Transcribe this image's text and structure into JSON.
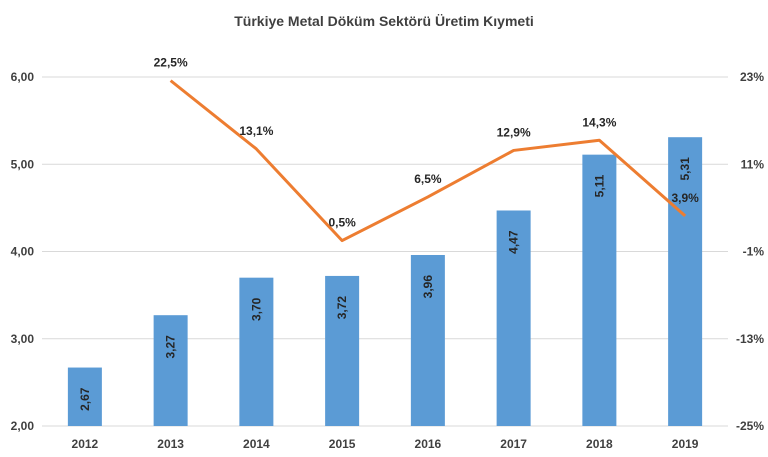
{
  "chart_data": {
    "type": "bar",
    "title": "Türkiye Metal Döküm Sektörü Üretim Kıymeti",
    "categories": [
      "2012",
      "2013",
      "2014",
      "2015",
      "2016",
      "2017",
      "2018",
      "2019"
    ],
    "series": [
      {
        "type": "bar",
        "axis": "left",
        "color": "#5B9BD5",
        "values": [
          2.67,
          3.27,
          3.7,
          3.72,
          3.96,
          4.47,
          5.11,
          5.31
        ],
        "labels": [
          "2,67",
          "3,27",
          "3,70",
          "3,72",
          "3,96",
          "4,47",
          "5,11",
          "5,31"
        ]
      },
      {
        "type": "line",
        "axis": "right",
        "color": "#ED7D31",
        "values": [
          null,
          22.5,
          13.1,
          0.5,
          6.5,
          12.9,
          14.3,
          3.9
        ],
        "labels": [
          null,
          "22,5%",
          "13,1%",
          "0,5%",
          "6,5%",
          "12,9%",
          "14,3%",
          "3,9%"
        ]
      }
    ],
    "y_left": {
      "min": 2,
      "max": 6,
      "ticks": [
        "2,00",
        "3,00",
        "4,00",
        "5,00",
        "6,00"
      ]
    },
    "y_right": {
      "min": -25,
      "max": 23,
      "ticks": [
        "-25%",
        "-13%",
        "-1%",
        "11%",
        "23%"
      ]
    },
    "grid": true,
    "legend": "none",
    "grid_color": "#D9D9D9",
    "text_color": "#404040"
  }
}
